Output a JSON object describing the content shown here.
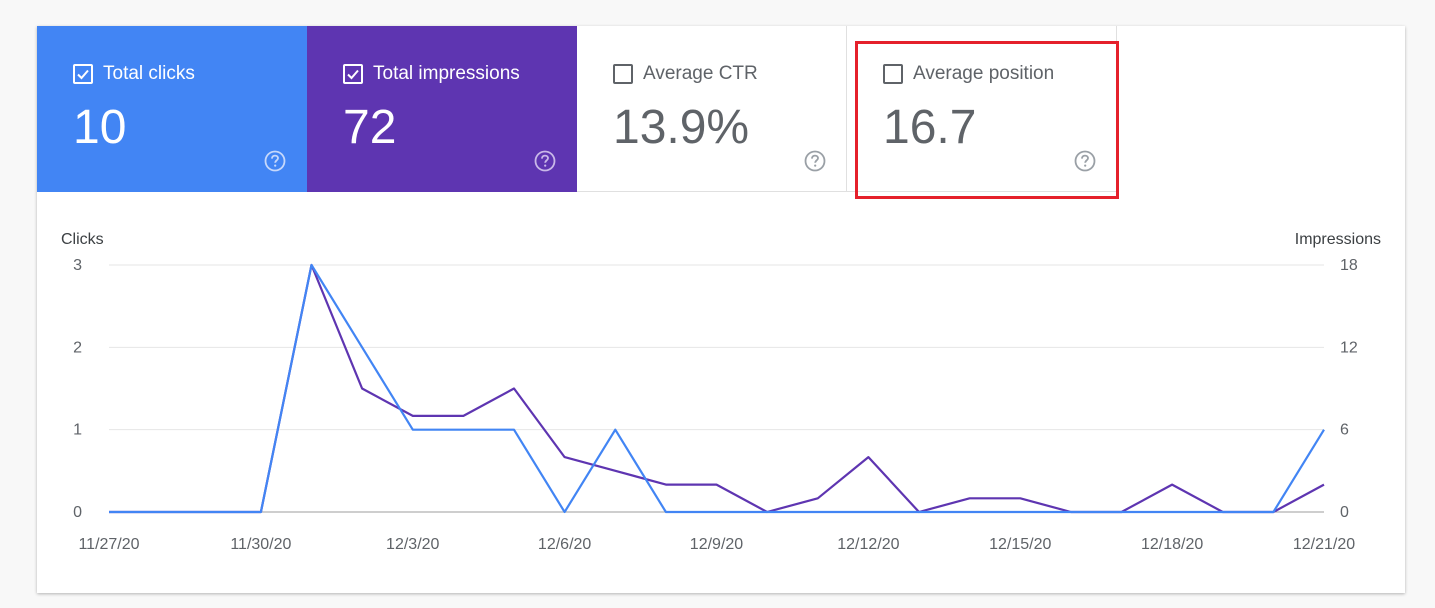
{
  "metrics": {
    "clicks": {
      "label": "Total clicks",
      "value": "10",
      "checked": true,
      "color": "#4285f4"
    },
    "impressions": {
      "label": "Total impressions",
      "value": "72",
      "checked": true,
      "color": "#5e35b1"
    },
    "ctr": {
      "label": "Average CTR",
      "value": "13.9%",
      "checked": false
    },
    "position": {
      "label": "Average position",
      "value": "16.7",
      "checked": false
    }
  },
  "highlight_color": "#e5202b",
  "chart_data": {
    "type": "line",
    "x": [
      "11/27/20",
      "11/28/20",
      "11/29/20",
      "11/30/20",
      "12/1/20",
      "12/2/20",
      "12/3/20",
      "12/4/20",
      "12/5/20",
      "12/6/20",
      "12/7/20",
      "12/8/20",
      "12/9/20",
      "12/10/20",
      "12/11/20",
      "12/12/20",
      "12/13/20",
      "12/14/20",
      "12/15/20",
      "12/16/20",
      "12/17/20",
      "12/18/20",
      "12/19/20",
      "12/20/20",
      "12/21/20"
    ],
    "x_tick_labels": [
      "11/27/20",
      "11/30/20",
      "12/3/20",
      "12/6/20",
      "12/9/20",
      "12/12/20",
      "12/15/20",
      "12/18/20",
      "12/21/20"
    ],
    "series": [
      {
        "name": "Clicks",
        "axis": "left",
        "color": "#4285f4",
        "values": [
          0,
          0,
          0,
          0,
          3,
          2,
          1,
          1,
          1,
          0,
          1,
          0,
          0,
          0,
          0,
          0,
          0,
          0,
          0,
          0,
          0,
          0,
          0,
          0,
          1
        ]
      },
      {
        "name": "Impressions",
        "axis": "right",
        "color": "#5e35b1",
        "values": [
          0,
          0,
          0,
          0,
          18,
          9,
          7,
          7,
          9,
          4,
          3,
          2,
          2,
          0,
          1,
          4,
          0,
          1,
          1,
          0,
          0,
          2,
          0,
          0,
          2
        ]
      }
    ],
    "ylabel_left": "Clicks",
    "ylabel_right": "Impressions",
    "ylim_left": [
      0,
      3
    ],
    "ylim_right": [
      0,
      18
    ],
    "yticks_left": [
      "0",
      "1",
      "2",
      "3"
    ],
    "yticks_right": [
      "0",
      "6",
      "12",
      "18"
    ],
    "grid": true
  }
}
